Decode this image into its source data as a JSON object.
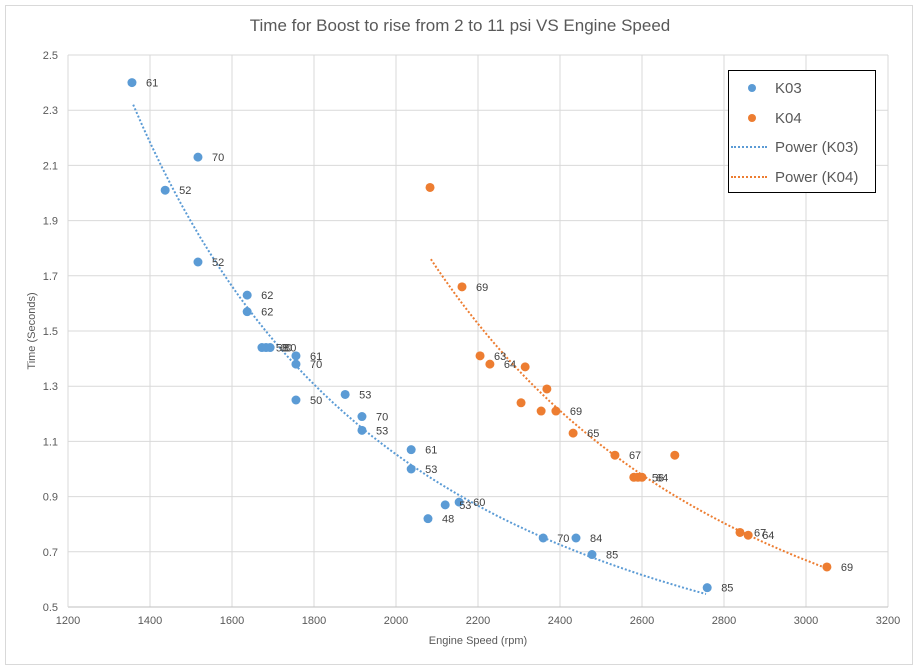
{
  "chart_data": {
    "type": "scatter",
    "title": "Time for Boost to rise from 2 to 11 psi VS Engine Speed",
    "xlabel": "Engine Speed (rpm)",
    "ylabel": "Time (Seconds)",
    "xlim": [
      1200,
      3200
    ],
    "ylim": [
      0.5,
      2.5
    ],
    "xticks": [
      1200,
      1400,
      1600,
      1800,
      2000,
      2200,
      2400,
      2600,
      2800,
      3000,
      3200
    ],
    "yticks": [
      0.5,
      0.7,
      0.9,
      1.1,
      1.3,
      1.5,
      1.7,
      1.9,
      2.1,
      2.3,
      2.5
    ],
    "xtick_labels": [
      "1200",
      "1400",
      "1600",
      "1800",
      "2000",
      "2200",
      "2400",
      "2600",
      "2800",
      "3000",
      "3200"
    ],
    "ytick_labels": [
      "0.5",
      "0.7",
      "0.9",
      "1.1",
      "1.3",
      "1.5",
      "1.7",
      "1.9",
      "2.1",
      "2.3",
      "2.5"
    ],
    "grid": true,
    "legend_position": "top-right",
    "series": [
      {
        "name": "K03",
        "color": "#5b9bd5",
        "points": [
          {
            "x": 1356,
            "y": 2.4,
            "label": "61"
          },
          {
            "x": 1517,
            "y": 2.13,
            "label": "70"
          },
          {
            "x": 1437,
            "y": 2.01,
            "label": "52"
          },
          {
            "x": 1517,
            "y": 1.75,
            "label": "52"
          },
          {
            "x": 1637,
            "y": 1.63,
            "label": "62"
          },
          {
            "x": 1637,
            "y": 1.57,
            "label": "62"
          },
          {
            "x": 1673,
            "y": 1.44,
            "label": "58"
          },
          {
            "x": 1683,
            "y": 1.44,
            "label": "60"
          },
          {
            "x": 1693,
            "y": 1.44,
            "label": "80"
          },
          {
            "x": 1756,
            "y": 1.41,
            "label": "61"
          },
          {
            "x": 1756,
            "y": 1.38,
            "label": "70"
          },
          {
            "x": 1756,
            "y": 1.25,
            "label": "50"
          },
          {
            "x": 1876,
            "y": 1.27,
            "label": "53"
          },
          {
            "x": 1917,
            "y": 1.19,
            "label": "70"
          },
          {
            "x": 1917,
            "y": 1.14,
            "label": "53"
          },
          {
            "x": 2037,
            "y": 1.07,
            "label": "61"
          },
          {
            "x": 2037,
            "y": 1.0,
            "label": "53"
          },
          {
            "x": 2078,
            "y": 0.82,
            "label": "48"
          },
          {
            "x": 2120,
            "y": 0.87,
            "label": "53"
          },
          {
            "x": 2154,
            "y": 0.88,
            "label": "60"
          },
          {
            "x": 2359,
            "y": 0.75,
            "label": "70"
          },
          {
            "x": 2439,
            "y": 0.75,
            "label": "84"
          },
          {
            "x": 2478,
            "y": 0.69,
            "label": "85"
          },
          {
            "x": 2759,
            "y": 0.57,
            "label": "85"
          }
        ]
      },
      {
        "name": "K04",
        "color": "#ed7d31",
        "points": [
          {
            "x": 2083,
            "y": 2.02,
            "label": ""
          },
          {
            "x": 2161,
            "y": 1.66,
            "label": "69"
          },
          {
            "x": 2205,
            "y": 1.41,
            "label": "63"
          },
          {
            "x": 2229,
            "y": 1.38,
            "label": "64"
          },
          {
            "x": 2315,
            "y": 1.37,
            "label": ""
          },
          {
            "x": 2368,
            "y": 1.29,
            "label": ""
          },
          {
            "x": 2305,
            "y": 1.24,
            "label": ""
          },
          {
            "x": 2354,
            "y": 1.21,
            "label": ""
          },
          {
            "x": 2390,
            "y": 1.21,
            "label": "69"
          },
          {
            "x": 2432,
            "y": 1.13,
            "label": "65"
          },
          {
            "x": 2534,
            "y": 1.05,
            "label": "67"
          },
          {
            "x": 2680,
            "y": 1.05,
            "label": ""
          },
          {
            "x": 2580,
            "y": 0.97,
            "label": ""
          },
          {
            "x": 2590,
            "y": 0.97,
            "label": "56"
          },
          {
            "x": 2600,
            "y": 0.97,
            "label": "64"
          },
          {
            "x": 2839,
            "y": 0.77,
            "label": "67"
          },
          {
            "x": 2859,
            "y": 0.76,
            "label": "64"
          },
          {
            "x": 3051,
            "y": 0.645,
            "label": "69"
          }
        ]
      }
    ],
    "trendlines": [
      {
        "name": "Power (K03)",
        "series": "K03",
        "color": "#5b9bd5",
        "style": "dotted",
        "x_range": [
          1359,
          2756
        ],
        "y_range": [
          2.32,
          0.547
        ]
      },
      {
        "name": "Power (K04)",
        "series": "K04",
        "color": "#ed7d31",
        "style": "dotted",
        "x_range": [
          2085,
          3051
        ],
        "y_range": [
          1.76,
          0.64
        ]
      }
    ]
  },
  "legend": {
    "items": [
      {
        "label": "K03",
        "kind": "marker",
        "color": "#5b9bd5"
      },
      {
        "label": "K04",
        "kind": "marker",
        "color": "#ed7d31"
      },
      {
        "label": "Power (K03)",
        "kind": "line",
        "color": "#5b9bd5"
      },
      {
        "label": "Power (K04)",
        "kind": "line",
        "color": "#ed7d31"
      }
    ]
  }
}
